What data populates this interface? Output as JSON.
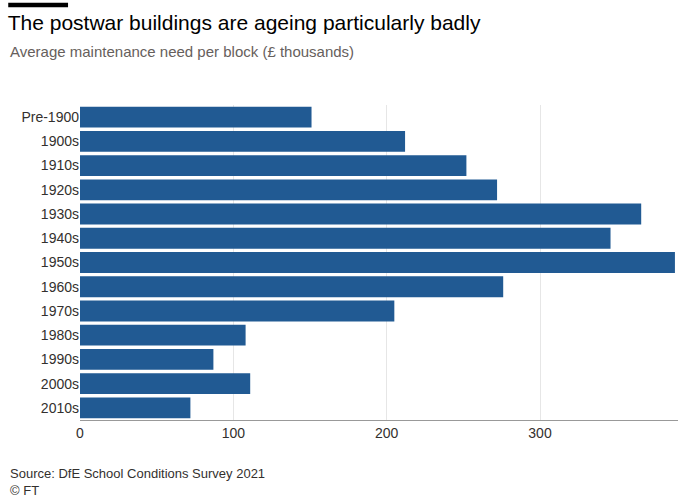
{
  "chart_data": {
    "type": "bar",
    "orientation": "horizontal",
    "title": "The postwar buildings are ageing particularly badly",
    "subtitle": "Average maintenance need per block (£ thousands)",
    "source": "Source: DfE School Conditions Survey 2021",
    "credit": "© FT",
    "categories": [
      "Pre-1900",
      "1900s",
      "1910s",
      "1920s",
      "1930s",
      "1940s",
      "1950s",
      "1960s",
      "1970s",
      "1980s",
      "1990s",
      "2000s",
      "2010s"
    ],
    "values": [
      151,
      212,
      252,
      272,
      366,
      346,
      388,
      276,
      205,
      108,
      87,
      111,
      72
    ],
    "color": "#215a93",
    "xlim": [
      0,
      390
    ],
    "xticks": [
      0,
      100,
      200,
      300
    ],
    "grid": true
  }
}
